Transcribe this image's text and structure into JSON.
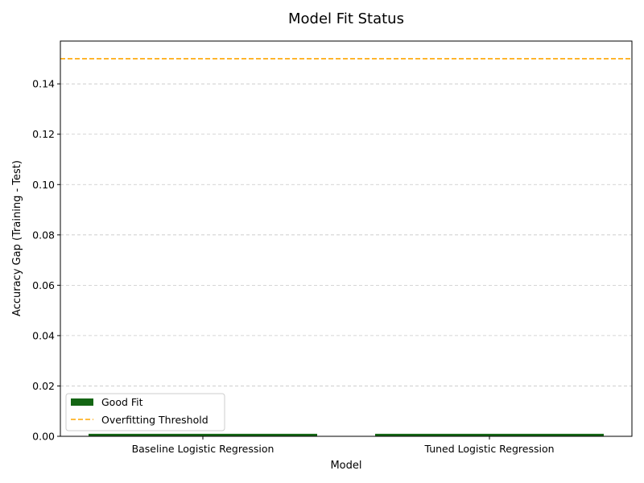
{
  "chart_data": {
    "type": "bar",
    "title": "Model Fit Status",
    "xlabel": "Model",
    "ylabel": "Accuracy Gap (Training - Test)",
    "categories": [
      "Baseline Logistic Regression",
      "Tuned Logistic Regression"
    ],
    "series": [
      {
        "name": "Good Fit",
        "values": [
          0.001,
          0.001
        ],
        "color": "#146614"
      }
    ],
    "threshold": {
      "name": "Overfitting Threshold",
      "value": 0.15,
      "color": "#ffa500",
      "style": "dashed"
    },
    "ylim": [
      0,
      0.157
    ],
    "yticks": [
      "0.00",
      "0.02",
      "0.04",
      "0.06",
      "0.08",
      "0.10",
      "0.12",
      "0.14"
    ],
    "grid": "y-dashed",
    "legend_position": "lower-left"
  }
}
